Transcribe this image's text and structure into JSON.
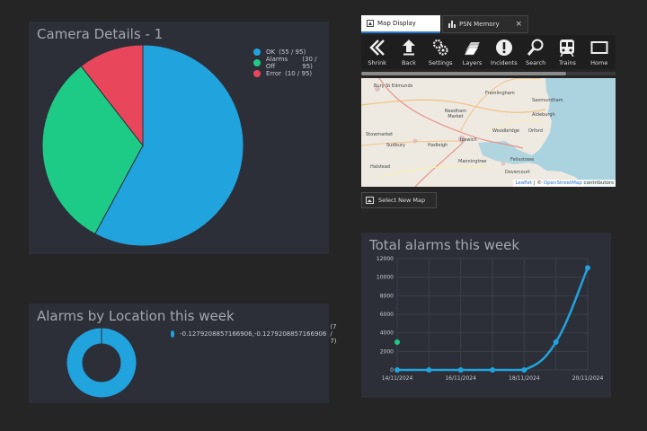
{
  "camera_panel": {
    "title": "Camera Details - 1",
    "legend": [
      {
        "label": "OK",
        "count": "(55 / 95)",
        "color": "#21a3de"
      },
      {
        "label": "Alarms Off",
        "count": "(30 / 95)",
        "color": "#1ecb86"
      },
      {
        "label": "Error",
        "count": "(10 / 95)",
        "color": "#e8475b"
      }
    ]
  },
  "location_panel": {
    "title": "Alarms by Location this week",
    "legend": [
      {
        "label": "-0.1279208857166906,-0.1279208857166906",
        "count": "(7 / 7)",
        "color": "#21a3de"
      }
    ]
  },
  "map_window": {
    "tabs": [
      {
        "label": "Map Display",
        "active": true
      },
      {
        "label": "PSN Memory",
        "active": false
      }
    ],
    "close_glyph": "×",
    "toolbar": [
      {
        "label": "Shrink",
        "icon": "shrink-icon"
      },
      {
        "label": "Back",
        "icon": "back-arrow-icon"
      },
      {
        "label": "Settings",
        "icon": "gears-icon"
      },
      {
        "label": "Layers",
        "icon": "layers-icon"
      },
      {
        "label": "Incidents",
        "icon": "alert-icon"
      },
      {
        "label": "Search",
        "icon": "search-icon"
      },
      {
        "label": "Trains",
        "icon": "train-icon"
      },
      {
        "label": "Home",
        "icon": "home-screen-icon"
      }
    ],
    "places": [
      "Bury St Edmunds",
      "Framlingham",
      "Needham Market",
      "Stowmarket",
      "Saxmundham",
      "Aldeburgh",
      "Woodbridge",
      "Orford",
      "Ipswich",
      "Hadleigh",
      "Sudbury",
      "Felixstowe",
      "Manningtree",
      "Halstead",
      "Dovercourt"
    ],
    "attribution": {
      "leaflet": "Leaflet",
      "sep": " | © ",
      "osm": "OpenStreetMap",
      "suffix": " contributors"
    },
    "select_button": "Select New Map"
  },
  "chart_data": [
    {
      "type": "pie",
      "title": "Camera Details - 1",
      "categories": [
        "OK",
        "Alarms Off",
        "Error"
      ],
      "values": [
        55,
        30,
        10
      ],
      "colors": [
        "#21a3de",
        "#1ecb86",
        "#e8475b"
      ]
    },
    {
      "type": "pie",
      "variant": "doughnut",
      "title": "Alarms by Location this week",
      "categories": [
        "-0.1279208857166906,-0.1279208857166906"
      ],
      "values": [
        7
      ],
      "colors": [
        "#21a3de"
      ]
    },
    {
      "type": "line",
      "title": "Total alarms this week",
      "x": [
        "14/11/2024",
        "15/11/2024",
        "16/11/2024",
        "17/11/2024",
        "18/11/2024",
        "19/11/2024",
        "20/11/2024"
      ],
      "xticks": [
        "14/11/2024",
        "16/11/2024",
        "18/11/2024",
        "20/11/2024"
      ],
      "series": [
        {
          "values": [
            0,
            0,
            0,
            0,
            0,
            3000,
            11000
          ],
          "color": "#21a3de"
        }
      ],
      "extra_points": [
        {
          "x": "14/11/2024",
          "y": 3000,
          "color": "#1ecb86"
        }
      ],
      "ylim": [
        0,
        12000
      ],
      "yticks": [
        0,
        2000,
        4000,
        6000,
        8000,
        10000,
        12000
      ],
      "grid": true
    }
  ]
}
